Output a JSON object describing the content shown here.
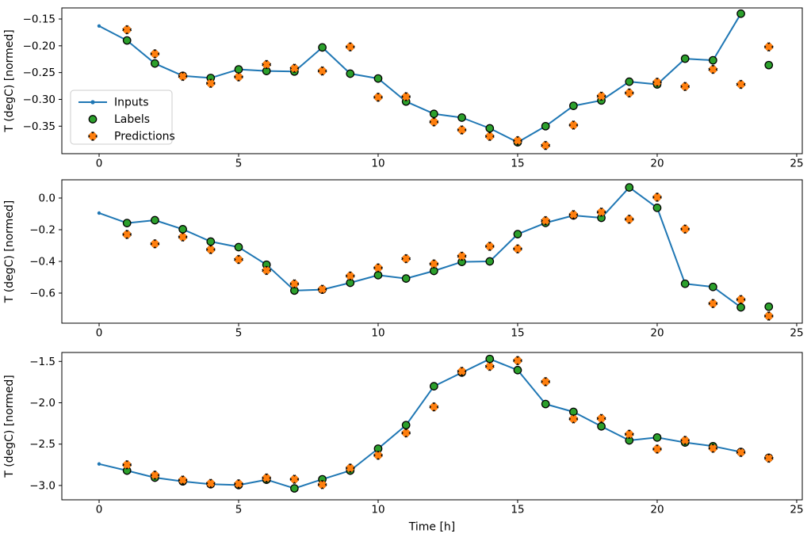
{
  "figure": {
    "background": "#ffffff",
    "xlabel": "Time [h]",
    "ylabel": "T (degC) [normed]"
  },
  "legend": {
    "position": "upper-left-of-first-panel",
    "items": [
      {
        "label": "Inputs",
        "swatch": "line-dot",
        "color": "#1f77b4"
      },
      {
        "label": "Labels",
        "swatch": "circle",
        "color": "#2ca02c",
        "edge": "#000000"
      },
      {
        "label": "Predictions",
        "swatch": "x-marker",
        "color": "#ff7f0e",
        "edge": "#000000"
      }
    ]
  },
  "chart_data": [
    {
      "type": "line",
      "title": "",
      "xlabel": "",
      "ylabel": "T (degC) [normed]",
      "xlim": [
        -1.335,
        25.2
      ],
      "ylim": [
        -0.4013,
        -0.1293
      ],
      "grid": false,
      "xticks": [
        {
          "v": 0,
          "label": "0"
        },
        {
          "v": 5,
          "label": "5"
        },
        {
          "v": 10,
          "label": "10"
        },
        {
          "v": 15,
          "label": "15"
        },
        {
          "v": 20,
          "label": "20"
        },
        {
          "v": 25,
          "label": "25"
        }
      ],
      "yticks": [
        {
          "v": -0.15,
          "label": "−0.15"
        },
        {
          "v": -0.2,
          "label": "−0.20"
        },
        {
          "v": -0.25,
          "label": "−0.25"
        },
        {
          "v": -0.3,
          "label": "−0.30"
        },
        {
          "v": -0.35,
          "label": "−0.35"
        }
      ],
      "series": [
        {
          "name": "Inputs",
          "type": "line-dot",
          "color": "#1f77b4",
          "x0": 0,
          "y": [
            -0.163,
            -0.19,
            -0.233,
            -0.256,
            -0.26,
            -0.244,
            -0.247,
            -0.248,
            -0.203,
            -0.252,
            -0.261,
            -0.304,
            -0.327,
            -0.334,
            -0.354,
            -0.38,
            -0.35,
            -0.312,
            -0.302,
            -0.267,
            -0.272,
            -0.224,
            -0.227,
            -0.14
          ]
        },
        {
          "name": "Labels",
          "type": "scatter-circle",
          "color": "#2ca02c",
          "edge": "#000000",
          "x0": 1,
          "y": [
            -0.19,
            -0.233,
            -0.256,
            -0.26,
            -0.244,
            -0.247,
            -0.248,
            -0.203,
            -0.252,
            -0.261,
            -0.304,
            -0.327,
            -0.334,
            -0.354,
            -0.38,
            -0.35,
            -0.312,
            -0.302,
            -0.267,
            -0.272,
            -0.224,
            -0.227,
            -0.14,
            -0.236
          ]
        },
        {
          "name": "Predictions",
          "type": "scatter-x",
          "color": "#ff7f0e",
          "edge": "#000000",
          "x0": 1,
          "y": [
            -0.17,
            -0.215,
            -0.257,
            -0.27,
            -0.258,
            -0.235,
            -0.242,
            -0.247,
            -0.202,
            -0.296,
            -0.295,
            -0.342,
            -0.357,
            -0.369,
            -0.377,
            -0.386,
            -0.348,
            -0.294,
            -0.288,
            -0.268,
            -0.276,
            -0.244,
            -0.272,
            -0.202
          ]
        }
      ]
    },
    {
      "type": "line",
      "title": "",
      "xlabel": "",
      "ylabel": "T (degC) [normed]",
      "xlim": [
        -1.335,
        25.2
      ],
      "ylim": [
        -0.79,
        0.115
      ],
      "grid": false,
      "xticks": [
        {
          "v": 0,
          "label": "0"
        },
        {
          "v": 5,
          "label": "5"
        },
        {
          "v": 10,
          "label": "10"
        },
        {
          "v": 15,
          "label": "15"
        },
        {
          "v": 20,
          "label": "20"
        },
        {
          "v": 25,
          "label": "25"
        }
      ],
      "yticks": [
        {
          "v": 0.0,
          "label": "0.0"
        },
        {
          "v": -0.2,
          "label": "−0.2"
        },
        {
          "v": -0.4,
          "label": "−0.4"
        },
        {
          "v": -0.6,
          "label": "−0.6"
        }
      ],
      "series": [
        {
          "name": "Inputs",
          "type": "line-dot",
          "color": "#1f77b4",
          "x0": 0,
          "y": [
            -0.095,
            -0.158,
            -0.14,
            -0.197,
            -0.275,
            -0.31,
            -0.421,
            -0.584,
            -0.578,
            -0.535,
            -0.487,
            -0.508,
            -0.46,
            -0.403,
            -0.4,
            -0.228,
            -0.157,
            -0.11,
            -0.125,
            0.067,
            -0.062,
            -0.541,
            -0.561,
            -0.69
          ]
        },
        {
          "name": "Labels",
          "type": "scatter-circle",
          "color": "#2ca02c",
          "edge": "#000000",
          "x0": 1,
          "y": [
            -0.158,
            -0.14,
            -0.197,
            -0.275,
            -0.31,
            -0.421,
            -0.584,
            -0.578,
            -0.535,
            -0.487,
            -0.508,
            -0.46,
            -0.403,
            -0.4,
            -0.228,
            -0.157,
            -0.11,
            -0.125,
            0.067,
            -0.062,
            -0.541,
            -0.561,
            -0.69,
            -0.686
          ]
        },
        {
          "name": "Predictions",
          "type": "scatter-x",
          "color": "#ff7f0e",
          "edge": "#000000",
          "x0": 1,
          "y": [
            -0.23,
            -0.289,
            -0.246,
            -0.325,
            -0.388,
            -0.457,
            -0.542,
            -0.576,
            -0.492,
            -0.441,
            -0.383,
            -0.416,
            -0.367,
            -0.305,
            -0.321,
            -0.143,
            -0.105,
            -0.089,
            -0.134,
            0.005,
            -0.196,
            -0.666,
            -0.641,
            -0.745
          ]
        }
      ]
    },
    {
      "type": "line",
      "title": "",
      "xlabel": "Time [h]",
      "ylabel": "T (degC) [normed]",
      "xlim": [
        -1.335,
        25.2
      ],
      "ylim": [
        -3.1734,
        -1.3918
      ],
      "grid": false,
      "xticks": [
        {
          "v": 0,
          "label": "0"
        },
        {
          "v": 5,
          "label": "5"
        },
        {
          "v": 10,
          "label": "10"
        },
        {
          "v": 15,
          "label": "15"
        },
        {
          "v": 20,
          "label": "20"
        },
        {
          "v": 25,
          "label": "25"
        }
      ],
      "yticks": [
        {
          "v": -1.5,
          "label": "−1.5"
        },
        {
          "v": -2.0,
          "label": "−2.0"
        },
        {
          "v": -2.5,
          "label": "−2.5"
        },
        {
          "v": -3.0,
          "label": "−3.0"
        }
      ],
      "series": [
        {
          "name": "Inputs",
          "type": "line-dot",
          "color": "#1f77b4",
          "x0": 0,
          "y": [
            -2.74,
            -2.82,
            -2.905,
            -2.95,
            -2.985,
            -2.995,
            -2.93,
            -3.035,
            -2.925,
            -2.82,
            -2.555,
            -2.27,
            -1.8,
            -1.635,
            -1.47,
            -1.605,
            -2.015,
            -2.11,
            -2.285,
            -2.455,
            -2.42,
            -2.48,
            -2.525,
            -2.595
          ]
        },
        {
          "name": "Labels",
          "type": "scatter-circle",
          "color": "#2ca02c",
          "edge": "#000000",
          "x0": 1,
          "y": [
            -2.82,
            -2.905,
            -2.95,
            -2.985,
            -2.995,
            -2.93,
            -3.035,
            -2.925,
            -2.82,
            -2.555,
            -2.27,
            -1.8,
            -1.635,
            -1.47,
            -1.605,
            -2.015,
            -2.11,
            -2.285,
            -2.455,
            -2.42,
            -2.48,
            -2.525,
            -2.595,
            -2.665
          ]
        },
        {
          "name": "Predictions",
          "type": "scatter-x",
          "color": "#ff7f0e",
          "edge": "#000000",
          "x0": 1,
          "y": [
            -2.75,
            -2.875,
            -2.935,
            -2.975,
            -2.98,
            -2.91,
            -2.925,
            -2.99,
            -2.79,
            -2.635,
            -2.365,
            -2.05,
            -1.62,
            -1.56,
            -1.49,
            -1.745,
            -2.195,
            -2.19,
            -2.38,
            -2.56,
            -2.455,
            -2.55,
            -2.6,
            -2.67
          ]
        }
      ]
    }
  ]
}
